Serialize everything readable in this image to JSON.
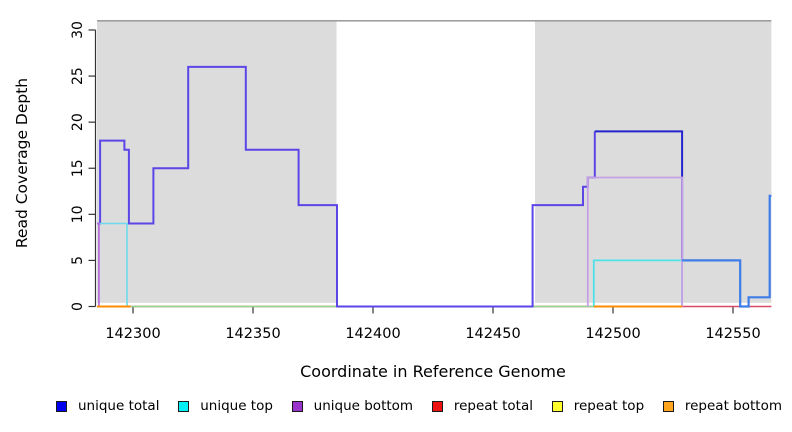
{
  "chart_data": {
    "type": "line",
    "title": "",
    "xlabel": "Coordinate in Reference Genome",
    "ylabel": "Read Coverage Depth",
    "x_ticks": [
      142300,
      142350,
      142400,
      142450,
      142500,
      142550
    ],
    "y_ticks": [
      0,
      5,
      10,
      15,
      20,
      25,
      30
    ],
    "x_range": [
      142285,
      142566
    ],
    "y_range": [
      0,
      31
    ],
    "grid": "off",
    "legend_position": "bottom",
    "shaded_regions": [
      {
        "name": "left-repeat-region",
        "from": 142285,
        "to": 142384.8
      },
      {
        "name": "right-repeat-region",
        "from": 142467.5,
        "to": 142566
      }
    ],
    "region_color": "#dcdcdc",
    "region_top_edge_color": "#8f8f8f",
    "gap_top_line": {
      "from": 142384.8,
      "to": 142467.5,
      "depth": 31,
      "color": "#8f8f8f"
    },
    "series": [
      {
        "name": "repeat total (zero line)",
        "color": "#d84a63",
        "width": 1.6,
        "points": [
          [
            142285,
            0
          ],
          [
            142566,
            0
          ]
        ]
      },
      {
        "name": "unique/repeat top overlap (zero line)",
        "color": "#8fd88c",
        "width": 1.6,
        "points": [
          [
            142299,
            0
          ],
          [
            142385,
            0
          ]
        ]
      },
      {
        "name": "unique/repeat top overlap (zero line) 2",
        "color": "#8fd88c",
        "width": 1.6,
        "points": [
          [
            142466.5,
            0
          ],
          [
            142492,
            0
          ]
        ]
      },
      {
        "name": "unique total (left)",
        "color": "#5b45e6",
        "width": 2,
        "points": [
          [
            142285,
            9
          ],
          [
            142286.3,
            9
          ],
          [
            142286.3,
            18
          ],
          [
            142296.4,
            18
          ],
          [
            142296.4,
            17
          ],
          [
            142298.3,
            17
          ],
          [
            142298.3,
            9
          ],
          [
            142308.5,
            9
          ],
          [
            142308.5,
            15
          ],
          [
            142323,
            15
          ],
          [
            142323,
            26
          ],
          [
            142347,
            26
          ],
          [
            142347,
            17
          ],
          [
            142369,
            17
          ],
          [
            142369,
            11
          ],
          [
            142385,
            11
          ],
          [
            142385,
            0
          ],
          [
            142466.5,
            0
          ],
          [
            142466.5,
            11
          ],
          [
            142487.5,
            11
          ],
          [
            142487.5,
            13
          ],
          [
            142489.5,
            13
          ],
          [
            142489.5,
            14
          ],
          [
            142492.4,
            14
          ],
          [
            142492.4,
            19
          ]
        ]
      },
      {
        "name": "unique total (middle)",
        "color": "#2424cf",
        "width": 2,
        "points": [
          [
            142492.4,
            19
          ],
          [
            142528.8,
            19
          ],
          [
            142528.8,
            5
          ]
        ]
      },
      {
        "name": "unique top (left)",
        "color": "#6cd9ef",
        "width": 1.6,
        "points": [
          [
            142285,
            9
          ],
          [
            142297.5,
            9
          ],
          [
            142297.5,
            0
          ]
        ]
      },
      {
        "name": "unique top (right)",
        "color": "#4ee2e8",
        "width": 1.8,
        "points": [
          [
            142492,
            0
          ],
          [
            142492,
            5
          ],
          [
            142528.8,
            5
          ],
          [
            142528.8,
            0
          ]
        ]
      },
      {
        "name": "unique bottom (left)",
        "color": "#b164dc",
        "width": 1.6,
        "points": [
          [
            142285,
            9
          ],
          [
            142285.8,
            9
          ],
          [
            142285.8,
            0
          ]
        ]
      },
      {
        "name": "unique bottom (right)",
        "color": "#c79fe6",
        "width": 1.8,
        "points": [
          [
            142489.5,
            0
          ],
          [
            142489.5,
            14
          ],
          [
            142528.8,
            14
          ],
          [
            142528.8,
            0
          ]
        ]
      },
      {
        "name": "repeat bottom (zero line)",
        "color": "#ff8c00",
        "width": 2,
        "points": [
          [
            142285,
            0
          ],
          [
            142299,
            0
          ]
        ]
      },
      {
        "name": "repeat bottom (zero line) 2",
        "color": "#ff8c00",
        "width": 2,
        "points": [
          [
            142492,
            0
          ],
          [
            142528.8,
            0
          ]
        ]
      },
      {
        "name": "unique total (right)",
        "color": "#3e7ce8",
        "width": 2.2,
        "points": [
          [
            142528.8,
            5
          ],
          [
            142553,
            5
          ],
          [
            142553,
            0
          ],
          [
            142556.5,
            0
          ],
          [
            142556.5,
            1
          ],
          [
            142565.3,
            1
          ],
          [
            142565.3,
            12
          ],
          [
            142566,
            12
          ]
        ]
      }
    ],
    "legend": [
      {
        "label": "unique total",
        "color": "#0000ee"
      },
      {
        "label": "unique top",
        "color": "#00f0f5"
      },
      {
        "label": "unique bottom",
        "color": "#9933cc"
      },
      {
        "label": "repeat total",
        "color": "#ee1111"
      },
      {
        "label": "repeat top",
        "color": "#ffff2e"
      },
      {
        "label": "repeat bottom",
        "color": "#ffa51e"
      }
    ]
  }
}
